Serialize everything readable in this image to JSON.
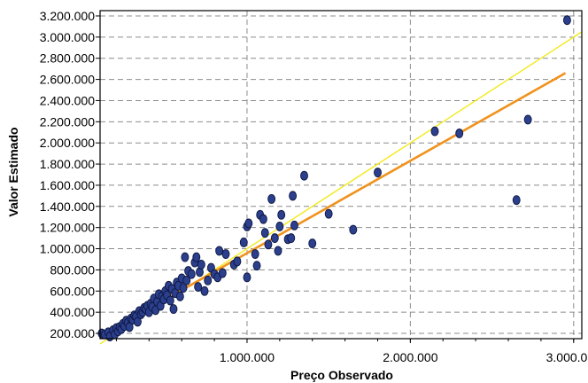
{
  "chart_data": {
    "type": "scatter",
    "title": "",
    "xlabel": "Preço Observado",
    "ylabel": "Valor Estimado",
    "xlim": [
      100000,
      3050000
    ],
    "ylim": [
      150000,
      3250000
    ],
    "x_ticks": [
      {
        "value": 1000000,
        "label": "1.000.000"
      },
      {
        "value": 2000000,
        "label": "2.000.000"
      },
      {
        "value": 3000000,
        "label": "3.000.000"
      }
    ],
    "x_minor_step": 200000,
    "y_ticks": [
      {
        "value": 200000,
        "label": "200.000"
      },
      {
        "value": 400000,
        "label": "400.000"
      },
      {
        "value": 600000,
        "label": "600.000"
      },
      {
        "value": 800000,
        "label": "800.000"
      },
      {
        "value": 1000000,
        "label": "1.000.000"
      },
      {
        "value": 1200000,
        "label": "1.200.000"
      },
      {
        "value": 1400000,
        "label": "1.400.000"
      },
      {
        "value": 1600000,
        "label": "1.600.000"
      },
      {
        "value": 1800000,
        "label": "1.800.000"
      },
      {
        "value": 2000000,
        "label": "2.000.000"
      },
      {
        "value": 2200000,
        "label": "2.200.000"
      },
      {
        "value": 2400000,
        "label": "2.400.000"
      },
      {
        "value": 2600000,
        "label": "2.600.000"
      },
      {
        "value": 2800000,
        "label": "2.800.000"
      },
      {
        "value": 3000000,
        "label": "3.000.000"
      },
      {
        "value": 3200000,
        "label": "3.200.000"
      }
    ],
    "grid": true,
    "colors": {
      "point_fill": "#2b3f8c",
      "point_stroke": "#0d1640",
      "identity_line": "#f2ea1c",
      "fit_line": "#f0921c",
      "grid": "#8c8c8c",
      "axis": "#000000"
    },
    "series": [
      {
        "type": "scatter",
        "points": [
          [
            110000,
            200000
          ],
          [
            130000,
            190000
          ],
          [
            150000,
            210000
          ],
          [
            160000,
            170000
          ],
          [
            180000,
            230000
          ],
          [
            190000,
            190000
          ],
          [
            200000,
            250000
          ],
          [
            210000,
            220000
          ],
          [
            220000,
            260000
          ],
          [
            230000,
            240000
          ],
          [
            240000,
            290000
          ],
          [
            250000,
            270000
          ],
          [
            260000,
            320000
          ],
          [
            270000,
            300000
          ],
          [
            280000,
            260000
          ],
          [
            290000,
            340000
          ],
          [
            300000,
            330000
          ],
          [
            310000,
            370000
          ],
          [
            320000,
            360000
          ],
          [
            330000,
            310000
          ],
          [
            340000,
            410000
          ],
          [
            350000,
            380000
          ],
          [
            360000,
            400000
          ],
          [
            370000,
            440000
          ],
          [
            380000,
            430000
          ],
          [
            390000,
            460000
          ],
          [
            400000,
            400000
          ],
          [
            410000,
            480000
          ],
          [
            420000,
            450000
          ],
          [
            430000,
            530000
          ],
          [
            440000,
            420000
          ],
          [
            450000,
            500000
          ],
          [
            460000,
            570000
          ],
          [
            470000,
            460000
          ],
          [
            480000,
            550000
          ],
          [
            490000,
            520000
          ],
          [
            500000,
            600000
          ],
          [
            510000,
            560000
          ],
          [
            520000,
            650000
          ],
          [
            530000,
            510000
          ],
          [
            540000,
            620000
          ],
          [
            550000,
            430000
          ],
          [
            560000,
            580000
          ],
          [
            570000,
            680000
          ],
          [
            580000,
            650000
          ],
          [
            590000,
            550000
          ],
          [
            600000,
            720000
          ],
          [
            610000,
            630000
          ],
          [
            620000,
            920000
          ],
          [
            630000,
            700000
          ],
          [
            640000,
            790000
          ],
          [
            660000,
            760000
          ],
          [
            680000,
            870000
          ],
          [
            690000,
            920000
          ],
          [
            700000,
            640000
          ],
          [
            710000,
            780000
          ],
          [
            720000,
            850000
          ],
          [
            740000,
            600000
          ],
          [
            760000,
            700000
          ],
          [
            780000,
            820000
          ],
          [
            800000,
            760000
          ],
          [
            820000,
            730000
          ],
          [
            830000,
            980000
          ],
          [
            850000,
            770000
          ],
          [
            870000,
            950000
          ],
          [
            920000,
            850000
          ],
          [
            940000,
            880000
          ],
          [
            980000,
            1060000
          ],
          [
            1000000,
            1210000
          ],
          [
            1000000,
            730000
          ],
          [
            1010000,
            1240000
          ],
          [
            1050000,
            950000
          ],
          [
            1060000,
            840000
          ],
          [
            1080000,
            1320000
          ],
          [
            1100000,
            1280000
          ],
          [
            1110000,
            1150000
          ],
          [
            1130000,
            1040000
          ],
          [
            1150000,
            1470000
          ],
          [
            1170000,
            1100000
          ],
          [
            1190000,
            980000
          ],
          [
            1200000,
            1210000
          ],
          [
            1210000,
            1320000
          ],
          [
            1250000,
            1090000
          ],
          [
            1270000,
            1100000
          ],
          [
            1280000,
            1500000
          ],
          [
            1290000,
            1220000
          ],
          [
            1350000,
            1690000
          ],
          [
            1400000,
            1050000
          ],
          [
            1500000,
            1330000
          ],
          [
            1650000,
            1180000
          ],
          [
            1800000,
            1720000
          ],
          [
            2150000,
            2110000
          ],
          [
            2300000,
            2090000
          ],
          [
            2650000,
            1460000
          ],
          [
            2720000,
            2220000
          ],
          [
            2960000,
            3160000
          ]
        ]
      },
      {
        "type": "line",
        "x": [
          100000,
          3050000
        ],
        "y": [
          100000,
          3050000
        ]
      },
      {
        "type": "line",
        "x": [
          120000,
          2950000
        ],
        "y": [
          190000,
          2660000
        ]
      }
    ]
  }
}
